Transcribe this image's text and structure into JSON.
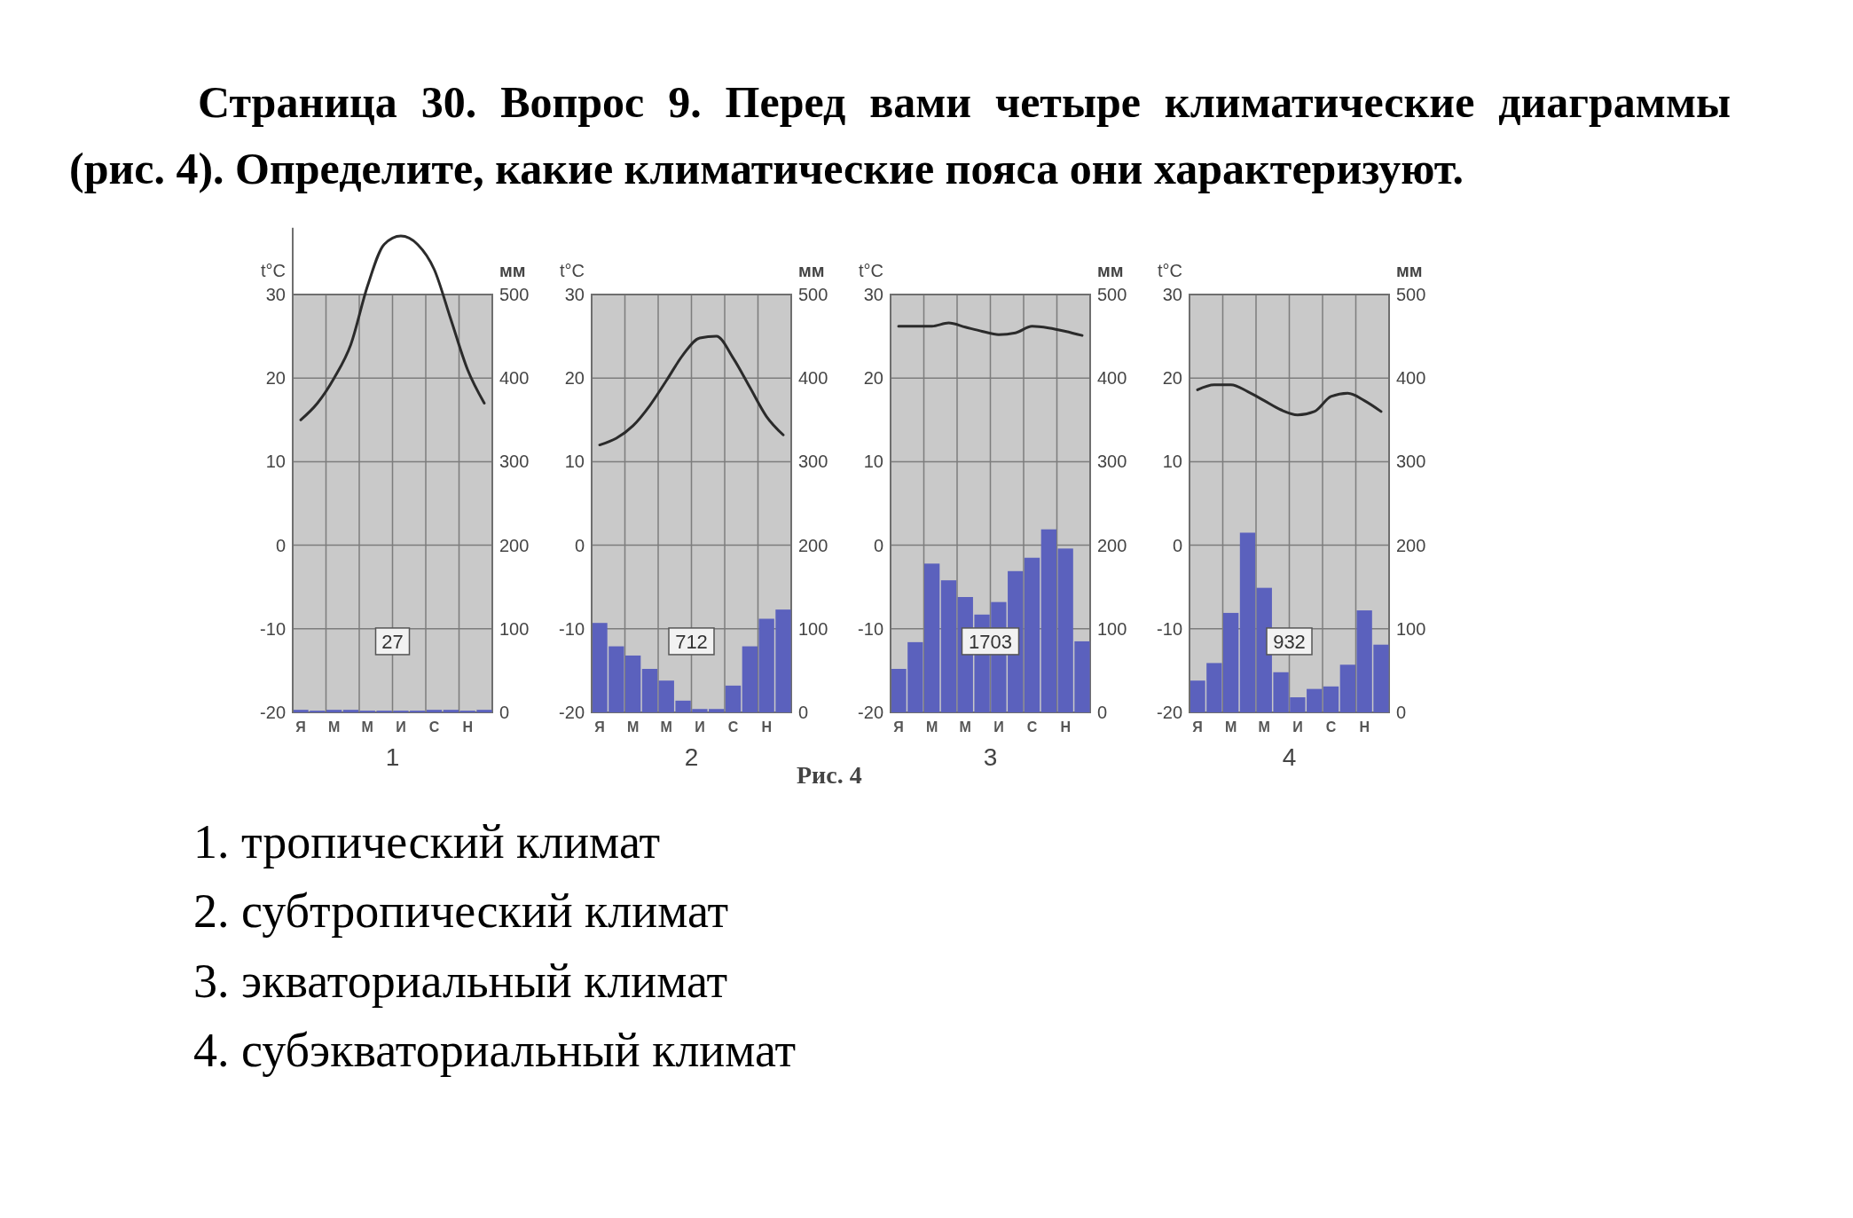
{
  "chart_data": [
    {
      "type": "other",
      "title": "Страница 30. Вопрос 9. Перед вами четыре климатические диаграммы (рис. 4). Определите, какие климатические пояса они характеризуют."
    },
    {
      "type": "bar",
      "xlabel": "1",
      "ylabel": "t°C",
      "y2label": "мм",
      "categories": [
        "Я",
        null,
        "М",
        null,
        "М",
        null,
        "И",
        null,
        "С",
        null,
        "Н",
        null
      ],
      "ylim": [
        -20,
        38
      ],
      "yticks": [
        -20,
        -10,
        0,
        10,
        20,
        30
      ],
      "y2lim": [
        0,
        580
      ],
      "y2ticks": [
        0,
        100,
        200,
        300,
        400,
        500
      ],
      "grid": true,
      "annotations": [
        "27"
      ],
      "series": [
        {
          "type": "bar",
          "axis": "y2",
          "color": "#5b61bd",
          "values": [
            3,
            2,
            3,
            3,
            2,
            2,
            2,
            2,
            3,
            3,
            2,
            3
          ]
        },
        {
          "type": "line",
          "axis": "y",
          "color": "#2b2b2b",
          "values": [
            15,
            17,
            20,
            24,
            31,
            36,
            37,
            36,
            33,
            27,
            21,
            17
          ]
        }
      ]
    },
    {
      "type": "bar",
      "xlabel": "2",
      "ylabel": "t°C",
      "y2label": "мм",
      "categories": [
        "Я",
        null,
        "М",
        null,
        "М",
        null,
        "И",
        null,
        "С",
        null,
        "Н",
        null
      ],
      "ylim": [
        -20,
        30
      ],
      "yticks": [
        -20,
        -10,
        0,
        10,
        20,
        30
      ],
      "y2lim": [
        0,
        500
      ],
      "y2ticks": [
        0,
        100,
        200,
        300,
        400,
        500
      ],
      "grid": true,
      "annotations": [
        "712"
      ],
      "series": [
        {
          "type": "bar",
          "axis": "y2",
          "color": "#5b61bd",
          "values": [
            107,
            79,
            68,
            52,
            38,
            14,
            4,
            4,
            32,
            79,
            112,
            123
          ]
        },
        {
          "type": "line",
          "axis": "y",
          "color": "#2b2b2b",
          "values": [
            12,
            12.8,
            14.3,
            16.7,
            19.7,
            22.8,
            24.8,
            25,
            22.4,
            18.9,
            15.4,
            13.2
          ]
        }
      ]
    },
    {
      "type": "bar",
      "xlabel": "3",
      "ylabel": "t°C",
      "y2label": "мм",
      "categories": [
        "Я",
        null,
        "М",
        null,
        "М",
        null,
        "И",
        null,
        "С",
        null,
        "Н",
        null
      ],
      "ylim": [
        -20,
        30
      ],
      "yticks": [
        -20,
        -10,
        0,
        10,
        20,
        30
      ],
      "y2lim": [
        0,
        500
      ],
      "y2ticks": [
        0,
        100,
        200,
        300,
        400,
        500
      ],
      "grid": true,
      "annotations": [
        "1703"
      ],
      "series": [
        {
          "type": "bar",
          "axis": "y2",
          "color": "#5b61bd",
          "values": [
            52,
            84,
            178,
            158,
            138,
            117,
            132,
            169,
            185,
            219,
            196,
            85
          ]
        },
        {
          "type": "line",
          "axis": "y",
          "color": "#2b2b2b",
          "values": [
            26.2,
            26.2,
            26.2,
            26.6,
            26.1,
            25.6,
            25.2,
            25.4,
            26.2,
            26,
            25.6,
            25.1
          ]
        }
      ]
    },
    {
      "type": "bar",
      "xlabel": "4",
      "ylabel": "t°C",
      "y2label": "мм",
      "categories": [
        "Я",
        null,
        "М",
        null,
        "М",
        null,
        "И",
        null,
        "С",
        null,
        "Н",
        null
      ],
      "ylim": [
        -20,
        30
      ],
      "yticks": [
        -20,
        -10,
        0,
        10,
        20,
        30
      ],
      "y2lim": [
        0,
        500
      ],
      "y2ticks": [
        0,
        100,
        200,
        300,
        400,
        500
      ],
      "grid": true,
      "annotations": [
        "932"
      ],
      "series": [
        {
          "type": "bar",
          "axis": "y2",
          "color": "#5b61bd",
          "values": [
            38,
            59,
            119,
            215,
            149,
            48,
            18,
            28,
            31,
            57,
            122,
            81
          ]
        },
        {
          "type": "line",
          "axis": "y",
          "color": "#2b2b2b",
          "values": [
            18.6,
            19.2,
            19.2,
            18.4,
            17.3,
            16.2,
            15.6,
            16,
            17.8,
            18.2,
            17.3,
            16
          ]
        }
      ]
    },
    {
      "type": "other",
      "annotations": [
        "Рис. 4",
        "1. тропический климат",
        "2. субтропический климат",
        "3. экваториальный климат",
        "4. субэкваториальный климат"
      ]
    }
  ]
}
